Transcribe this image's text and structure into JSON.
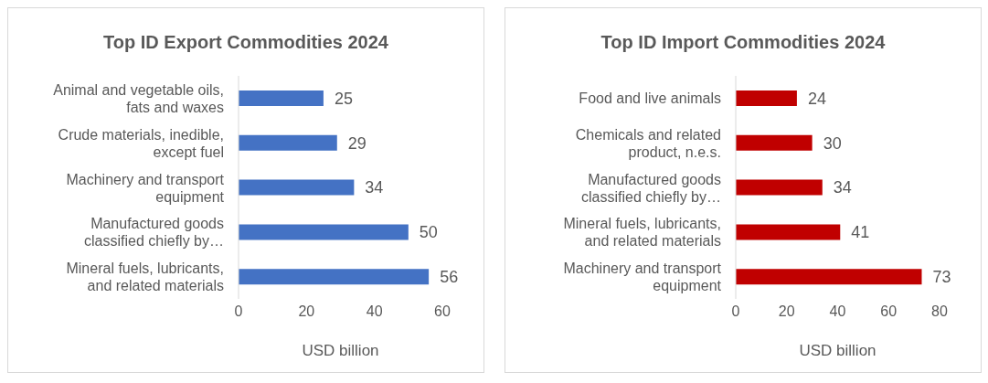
{
  "chart_data": [
    {
      "type": "bar",
      "orientation": "horizontal",
      "title": "Top ID Export Commodities 2024",
      "xlabel": "USD billion",
      "categories": [
        "Animal and vegetable oils, fats and waxes",
        "Crude materials, inedible, except fuel",
        "Machinery and transport equipment",
        "Manufactured goods classified chiefly by…",
        "Mineral fuels, lubricants, and related materials"
      ],
      "values": [
        25,
        29,
        34,
        50,
        56
      ],
      "color": "#4472c4",
      "xlim": [
        0,
        60
      ],
      "xticks": [
        0,
        20,
        40,
        60
      ],
      "data_labels": true
    },
    {
      "type": "bar",
      "orientation": "horizontal",
      "title": "Top ID Import Commodities 2024",
      "xlabel": "USD billion",
      "categories": [
        "Food and live animals",
        "Chemicals and related product, n.e.s.",
        "Manufactured goods classified chiefly by…",
        "Mineral fuels, lubricants, and related materials",
        "Machinery and transport equipment"
      ],
      "values": [
        24,
        30,
        34,
        41,
        73
      ],
      "color": "#c00000",
      "xlim": [
        0,
        80
      ],
      "xticks": [
        0,
        20,
        40,
        60,
        80
      ],
      "data_labels": true
    }
  ]
}
